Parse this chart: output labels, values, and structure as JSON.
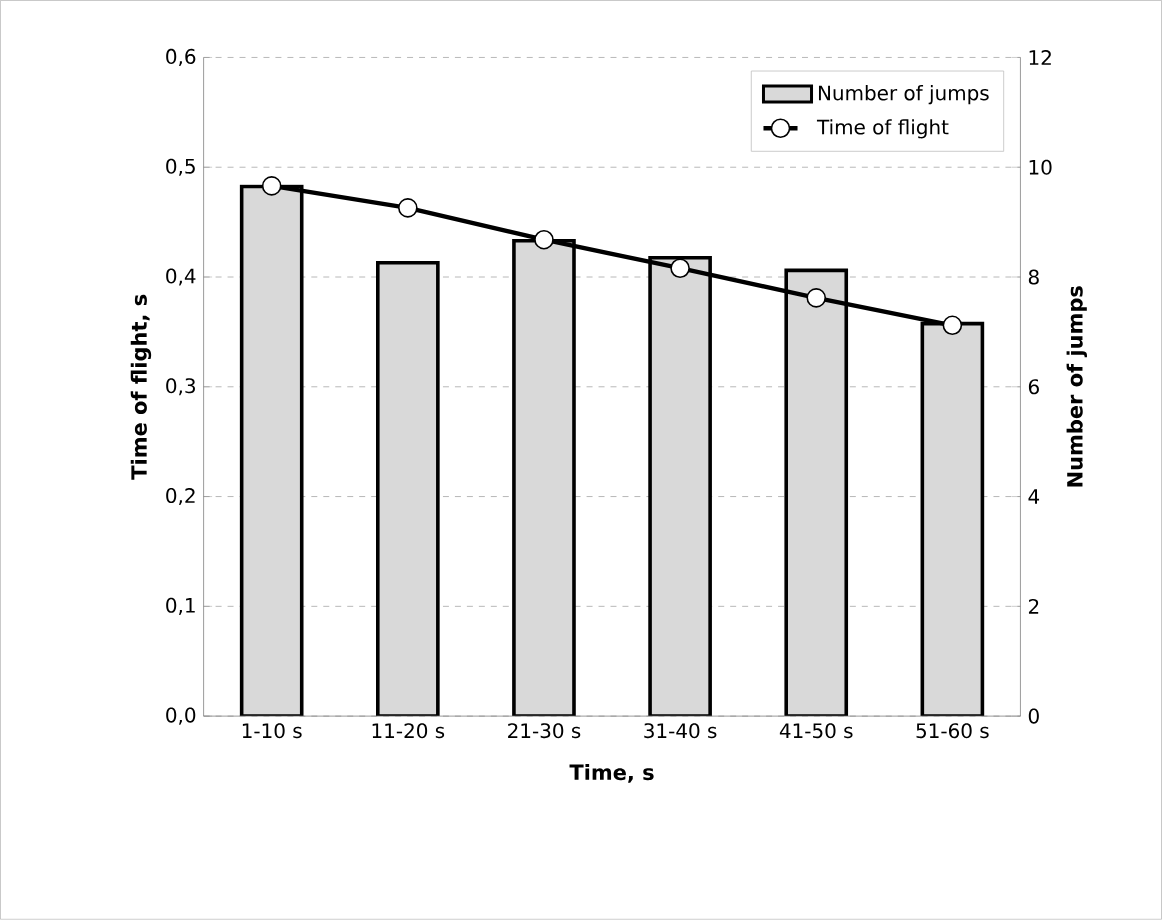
{
  "chart_data": {
    "type": "bar",
    "xlabel": "Time, s",
    "ylabel": "Time of flight, s",
    "y2label": "Number of jumps",
    "categories": [
      "1-10 s",
      "11-20 s",
      "21-30 s",
      "31-40 s",
      "41-50 s",
      "51-60 s"
    ],
    "series": [
      {
        "name": "Number of jumps",
        "axis": "y2",
        "color": "#d9d9d9",
        "values": [
          9.65,
          8.26,
          8.66,
          8.35,
          8.12,
          7.15
        ]
      },
      {
        "name": "Time of flight",
        "type": "line",
        "color": "#000000",
        "marker": "circle",
        "values": [
          0.483,
          0.463,
          0.434,
          0.408,
          0.381,
          0.356
        ]
      }
    ],
    "ylim": [
      0,
      0.6
    ],
    "yticks": [
      {
        "value": 0,
        "label": "0,0"
      },
      {
        "value": 0.1,
        "label": "0,1"
      },
      {
        "value": 0.2,
        "label": "0,2"
      },
      {
        "value": 0.3,
        "label": "0,3"
      },
      {
        "value": 0.4,
        "label": "0,4"
      },
      {
        "value": 0.5,
        "label": "0,5"
      },
      {
        "value": 0.6,
        "label": "0,6"
      }
    ],
    "y2lim": [
      0,
      12
    ],
    "y2ticks": [
      0,
      2,
      4,
      6,
      8,
      10,
      12
    ],
    "grid": "y",
    "legend": "top right"
  }
}
